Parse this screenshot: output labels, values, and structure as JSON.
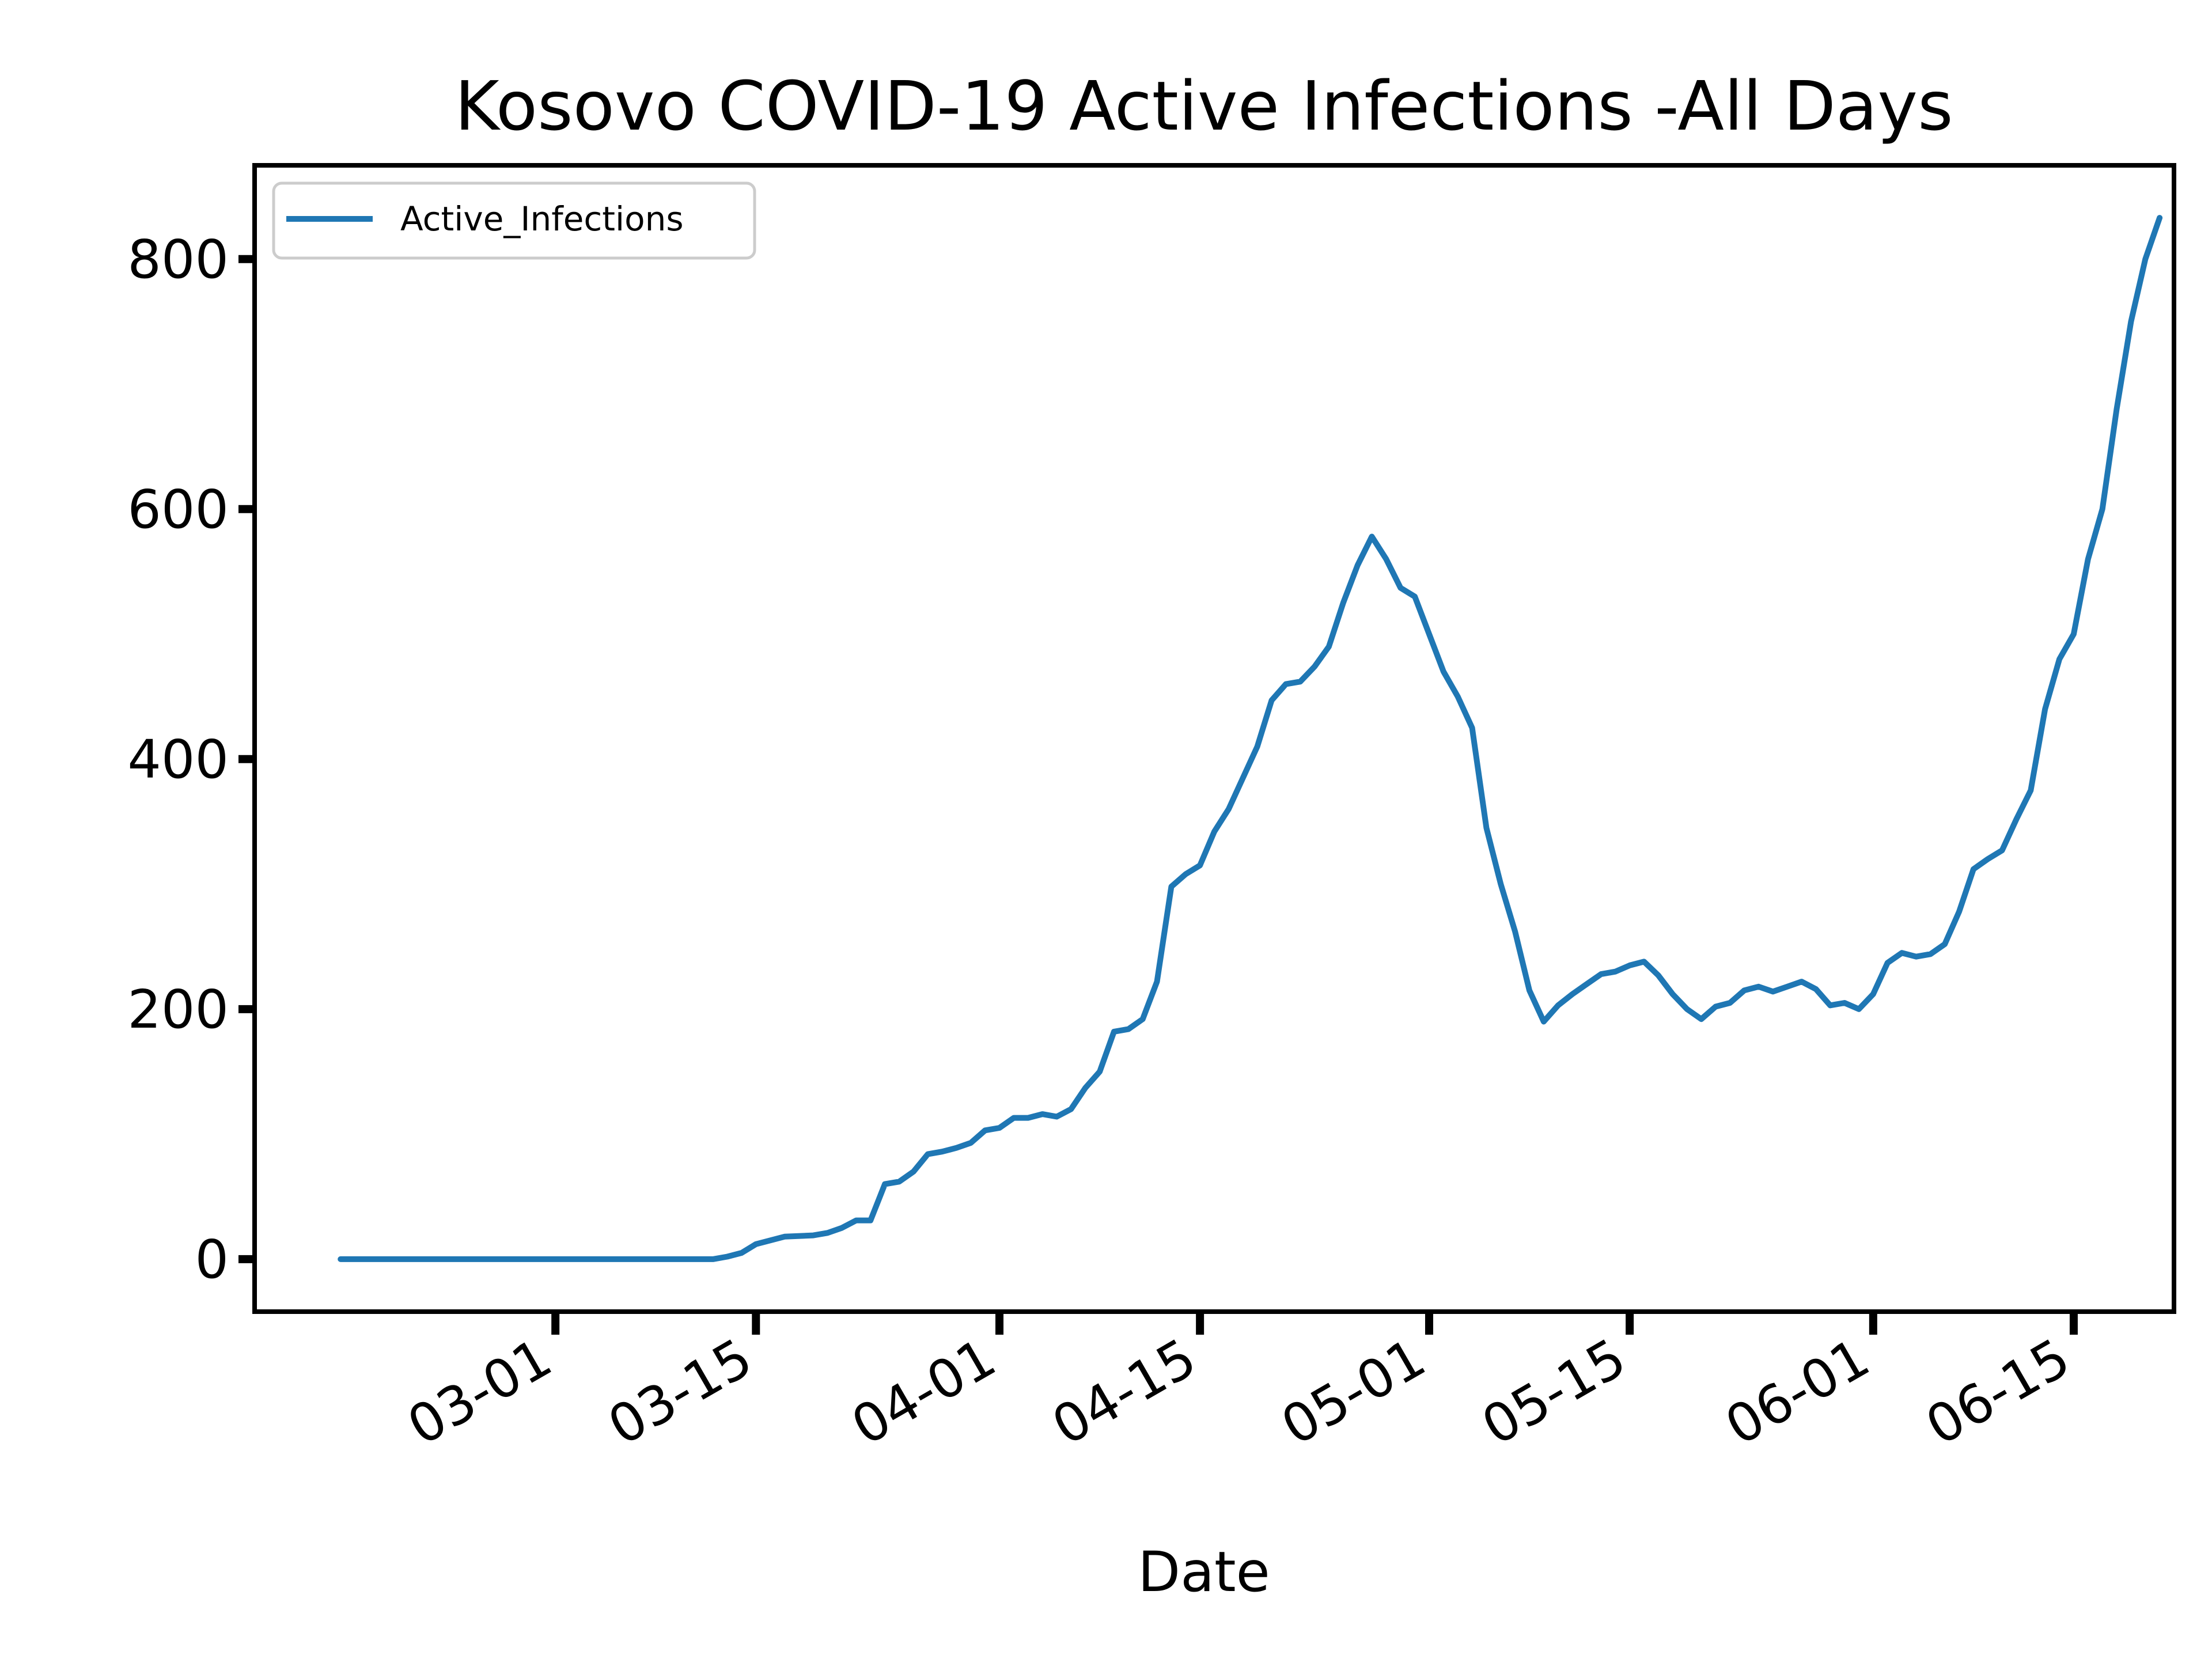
{
  "chart_data": {
    "type": "line",
    "title": "Kosovo COVID-19 Active Infections -All Days",
    "xlabel": "Date",
    "ylabel": "",
    "x_type": "date",
    "x_ticks": [
      "03-01",
      "03-15",
      "04-01",
      "04-15",
      "05-01",
      "05-15",
      "06-01",
      "06-15"
    ],
    "x_tick_dates": [
      "2020-03-01",
      "2020-03-15",
      "2020-04-01",
      "2020-04-15",
      "2020-05-01",
      "2020-05-15",
      "2020-06-01",
      "2020-06-15"
    ],
    "xlim": [
      "2020-02-09",
      "2020-06-22"
    ],
    "y_ticks": [
      "0",
      "200",
      "400",
      "600",
      "800"
    ],
    "ylim": [
      -42,
      875
    ],
    "grid": false,
    "legend": "upper left",
    "series": [
      {
        "name": "Active_Infections",
        "color": "#1f77b4",
        "points": [
          [
            "2020-02-15",
            0
          ],
          [
            "2020-02-18",
            0
          ],
          [
            "2020-02-22",
            0
          ],
          [
            "2020-02-26",
            0
          ],
          [
            "2020-03-01",
            0
          ],
          [
            "2020-03-05",
            0
          ],
          [
            "2020-03-09",
            0
          ],
          [
            "2020-03-12",
            0
          ],
          [
            "2020-03-13",
            2
          ],
          [
            "2020-03-14",
            5
          ],
          [
            "2020-03-15",
            12
          ],
          [
            "2020-03-17",
            18
          ],
          [
            "2020-03-19",
            19
          ],
          [
            "2020-03-20",
            21
          ],
          [
            "2020-03-21",
            25
          ],
          [
            "2020-03-22",
            31
          ],
          [
            "2020-03-23",
            31
          ],
          [
            "2020-03-24",
            60
          ],
          [
            "2020-03-25",
            62
          ],
          [
            "2020-03-26",
            70
          ],
          [
            "2020-03-27",
            84
          ],
          [
            "2020-03-28",
            86
          ],
          [
            "2020-03-29",
            89
          ],
          [
            "2020-03-30",
            93
          ],
          [
            "2020-03-31",
            103
          ],
          [
            "2020-04-01",
            105
          ],
          [
            "2020-04-02",
            113
          ],
          [
            "2020-04-03",
            113
          ],
          [
            "2020-04-04",
            116
          ],
          [
            "2020-04-05",
            114
          ],
          [
            "2020-04-06",
            120
          ],
          [
            "2020-04-07",
            137
          ],
          [
            "2020-04-08",
            150
          ],
          [
            "2020-04-09",
            182
          ],
          [
            "2020-04-10",
            184
          ],
          [
            "2020-04-11",
            192
          ],
          [
            "2020-04-12",
            222
          ],
          [
            "2020-04-13",
            298
          ],
          [
            "2020-04-14",
            308
          ],
          [
            "2020-04-15",
            315
          ],
          [
            "2020-04-16",
            342
          ],
          [
            "2020-04-17",
            360
          ],
          [
            "2020-04-18",
            385
          ],
          [
            "2020-04-19",
            410
          ],
          [
            "2020-04-20",
            447
          ],
          [
            "2020-04-21",
            460
          ],
          [
            "2020-04-22",
            462
          ],
          [
            "2020-04-23",
            474
          ],
          [
            "2020-04-24",
            490
          ],
          [
            "2020-04-25",
            525
          ],
          [
            "2020-04-26",
            555
          ],
          [
            "2020-04-27",
            578
          ],
          [
            "2020-04-28",
            560
          ],
          [
            "2020-04-29",
            537
          ],
          [
            "2020-04-30",
            530
          ],
          [
            "2020-05-01",
            500
          ],
          [
            "2020-05-02",
            470
          ],
          [
            "2020-05-03",
            450
          ],
          [
            "2020-05-04",
            425
          ],
          [
            "2020-05-05",
            345
          ],
          [
            "2020-05-06",
            300
          ],
          [
            "2020-05-07",
            262
          ],
          [
            "2020-05-08",
            215
          ],
          [
            "2020-05-09",
            190
          ],
          [
            "2020-05-10",
            203
          ],
          [
            "2020-05-11",
            212
          ],
          [
            "2020-05-12",
            220
          ],
          [
            "2020-05-13",
            228
          ],
          [
            "2020-05-14",
            230
          ],
          [
            "2020-05-15",
            235
          ],
          [
            "2020-05-16",
            238
          ],
          [
            "2020-05-17",
            227
          ],
          [
            "2020-05-18",
            212
          ],
          [
            "2020-05-19",
            200
          ],
          [
            "2020-05-20",
            192
          ],
          [
            "2020-05-21",
            202
          ],
          [
            "2020-05-22",
            205
          ],
          [
            "2020-05-23",
            215
          ],
          [
            "2020-05-24",
            218
          ],
          [
            "2020-05-25",
            214
          ],
          [
            "2020-05-26",
            218
          ],
          [
            "2020-05-27",
            222
          ],
          [
            "2020-05-28",
            216
          ],
          [
            "2020-05-29",
            203
          ],
          [
            "2020-05-30",
            205
          ],
          [
            "2020-05-31",
            200
          ],
          [
            "2020-06-01",
            212
          ],
          [
            "2020-06-02",
            237
          ],
          [
            "2020-06-03",
            245
          ],
          [
            "2020-06-04",
            242
          ],
          [
            "2020-06-05",
            244
          ],
          [
            "2020-06-06",
            252
          ],
          [
            "2020-06-07",
            278
          ],
          [
            "2020-06-08",
            312
          ],
          [
            "2020-06-09",
            320
          ],
          [
            "2020-06-10",
            327
          ],
          [
            "2020-06-11",
            352
          ],
          [
            "2020-06-12",
            375
          ],
          [
            "2020-06-13",
            440
          ],
          [
            "2020-06-14",
            480
          ],
          [
            "2020-06-15",
            500
          ],
          [
            "2020-06-16",
            560
          ],
          [
            "2020-06-17",
            600
          ],
          [
            "2020-06-18",
            680
          ],
          [
            "2020-06-19",
            750
          ],
          [
            "2020-06-20",
            800
          ],
          [
            "2020-06-21",
            833
          ]
        ]
      }
    ]
  }
}
